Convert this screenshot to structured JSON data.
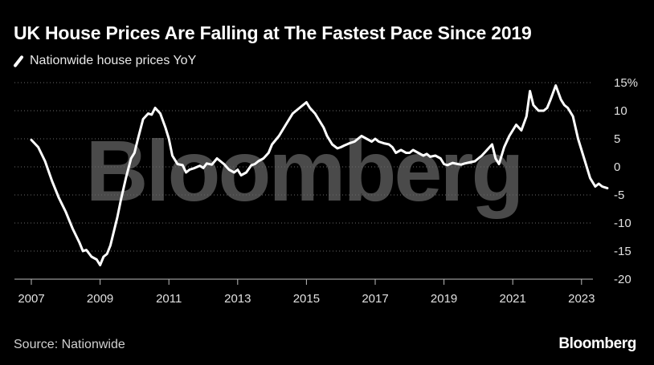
{
  "header": {
    "title": "UK House Prices Are Falling at The Fastest Pace Since 2019"
  },
  "legend": {
    "label": "Nationwide house prices YoY",
    "color": "#ffffff"
  },
  "footer": {
    "source": "Source: Nationwide",
    "brand": "Bloomberg"
  },
  "watermark": {
    "text": "Bloomberg"
  },
  "chart_data": {
    "type": "line",
    "title": "UK House Prices Are Falling at The Fastest Pace Since 2019",
    "xlabel": "",
    "ylabel": "",
    "xlim": [
      2007,
      2024
    ],
    "ylim": [
      -20,
      15
    ],
    "y_ticks": [
      15,
      10,
      5,
      0,
      -5,
      -10,
      -15,
      -20
    ],
    "y_tick_labels": [
      "15%",
      "10",
      "5",
      "0",
      "-5",
      "-10",
      "-15",
      "-20"
    ],
    "x_ticks": [
      2007,
      2009,
      2011,
      2013,
      2015,
      2017,
      2019,
      2021,
      2023
    ],
    "x_tick_labels": [
      "2007",
      "2009",
      "2011",
      "2013",
      "2015",
      "2017",
      "2019",
      "2021",
      "2023"
    ],
    "grid": "horizontal dotted",
    "legend_position": "top-left",
    "series": [
      {
        "name": "Nationwide house prices YoY",
        "color": "#ffffff",
        "points": [
          [
            2007.0,
            4.8
          ],
          [
            2007.2,
            3.5
          ],
          [
            2007.4,
            1.0
          ],
          [
            2007.6,
            -2.5
          ],
          [
            2007.8,
            -5.5
          ],
          [
            2008.0,
            -8.0
          ],
          [
            2008.2,
            -11.0
          ],
          [
            2008.4,
            -13.5
          ],
          [
            2008.5,
            -15.0
          ],
          [
            2008.6,
            -14.8
          ],
          [
            2008.75,
            -16.0
          ],
          [
            2008.9,
            -16.5
          ],
          [
            2009.0,
            -17.5
          ],
          [
            2009.1,
            -16.0
          ],
          [
            2009.2,
            -15.5
          ],
          [
            2009.3,
            -14.0
          ],
          [
            2009.4,
            -11.5
          ],
          [
            2009.5,
            -9.0
          ],
          [
            2009.6,
            -6.0
          ],
          [
            2009.75,
            -2.0
          ],
          [
            2009.9,
            1.5
          ],
          [
            2010.0,
            2.5
          ],
          [
            2010.1,
            5.0
          ],
          [
            2010.25,
            8.5
          ],
          [
            2010.4,
            9.5
          ],
          [
            2010.5,
            9.3
          ],
          [
            2010.6,
            10.5
          ],
          [
            2010.75,
            9.5
          ],
          [
            2010.9,
            7.0
          ],
          [
            2011.0,
            5.0
          ],
          [
            2011.1,
            2.0
          ],
          [
            2011.25,
            0.5
          ],
          [
            2011.4,
            0.3
          ],
          [
            2011.5,
            -1.0
          ],
          [
            2011.6,
            -0.5
          ],
          [
            2011.75,
            -0.2
          ],
          [
            2011.9,
            0.2
          ],
          [
            2012.0,
            -0.2
          ],
          [
            2012.1,
            0.6
          ],
          [
            2012.25,
            0.4
          ],
          [
            2012.4,
            1.5
          ],
          [
            2012.5,
            1.0
          ],
          [
            2012.6,
            0.5
          ],
          [
            2012.75,
            -0.5
          ],
          [
            2012.9,
            -1.0
          ],
          [
            2013.0,
            -0.5
          ],
          [
            2013.1,
            -1.5
          ],
          [
            2013.25,
            -1.0
          ],
          [
            2013.4,
            0.3
          ],
          [
            2013.5,
            0.5
          ],
          [
            2013.6,
            1.0
          ],
          [
            2013.75,
            1.5
          ],
          [
            2013.9,
            2.5
          ],
          [
            2014.0,
            4.0
          ],
          [
            2014.2,
            5.5
          ],
          [
            2014.4,
            7.5
          ],
          [
            2014.6,
            9.5
          ],
          [
            2014.8,
            10.5
          ],
          [
            2014.9,
            11.0
          ],
          [
            2015.0,
            11.5
          ],
          [
            2015.1,
            10.5
          ],
          [
            2015.25,
            9.5
          ],
          [
            2015.4,
            8.0
          ],
          [
            2015.5,
            7.0
          ],
          [
            2015.6,
            5.5
          ],
          [
            2015.75,
            4.0
          ],
          [
            2015.9,
            3.3
          ],
          [
            2016.0,
            3.5
          ],
          [
            2016.1,
            3.8
          ],
          [
            2016.25,
            4.2
          ],
          [
            2016.4,
            4.5
          ],
          [
            2016.5,
            5.0
          ],
          [
            2016.6,
            5.5
          ],
          [
            2016.75,
            5.0
          ],
          [
            2016.9,
            4.5
          ],
          [
            2017.0,
            5.0
          ],
          [
            2017.1,
            4.5
          ],
          [
            2017.25,
            4.2
          ],
          [
            2017.4,
            4.0
          ],
          [
            2017.5,
            3.5
          ],
          [
            2017.6,
            2.5
          ],
          [
            2017.75,
            3.0
          ],
          [
            2017.9,
            2.5
          ],
          [
            2018.0,
            2.5
          ],
          [
            2018.1,
            3.0
          ],
          [
            2018.25,
            2.5
          ],
          [
            2018.4,
            2.0
          ],
          [
            2018.5,
            2.3
          ],
          [
            2018.6,
            1.8
          ],
          [
            2018.75,
            2.0
          ],
          [
            2018.9,
            1.5
          ],
          [
            2019.0,
            0.5
          ],
          [
            2019.1,
            0.3
          ],
          [
            2019.25,
            0.7
          ],
          [
            2019.4,
            0.5
          ],
          [
            2019.5,
            0.4
          ],
          [
            2019.6,
            0.6
          ],
          [
            2019.75,
            0.8
          ],
          [
            2019.9,
            1.0
          ],
          [
            2020.0,
            1.5
          ],
          [
            2020.1,
            2.0
          ],
          [
            2020.25,
            3.0
          ],
          [
            2020.4,
            4.0
          ],
          [
            2020.5,
            1.5
          ],
          [
            2020.6,
            0.5
          ],
          [
            2020.75,
            3.5
          ],
          [
            2020.9,
            5.5
          ],
          [
            2021.0,
            6.5
          ],
          [
            2021.1,
            7.5
          ],
          [
            2021.25,
            6.5
          ],
          [
            2021.4,
            9.0
          ],
          [
            2021.5,
            13.5
          ],
          [
            2021.6,
            11.0
          ],
          [
            2021.75,
            10.0
          ],
          [
            2021.9,
            10.0
          ],
          [
            2022.0,
            10.5
          ],
          [
            2022.1,
            12.0
          ],
          [
            2022.25,
            14.5
          ],
          [
            2022.4,
            12.0
          ],
          [
            2022.5,
            11.0
          ],
          [
            2022.6,
            10.5
          ],
          [
            2022.75,
            9.0
          ],
          [
            2022.9,
            5.0
          ],
          [
            2023.0,
            3.0
          ],
          [
            2023.1,
            1.0
          ],
          [
            2023.25,
            -2.0
          ],
          [
            2023.4,
            -3.5
          ],
          [
            2023.5,
            -3.0
          ],
          [
            2023.6,
            -3.5
          ],
          [
            2023.75,
            -3.8
          ]
        ]
      }
    ]
  }
}
